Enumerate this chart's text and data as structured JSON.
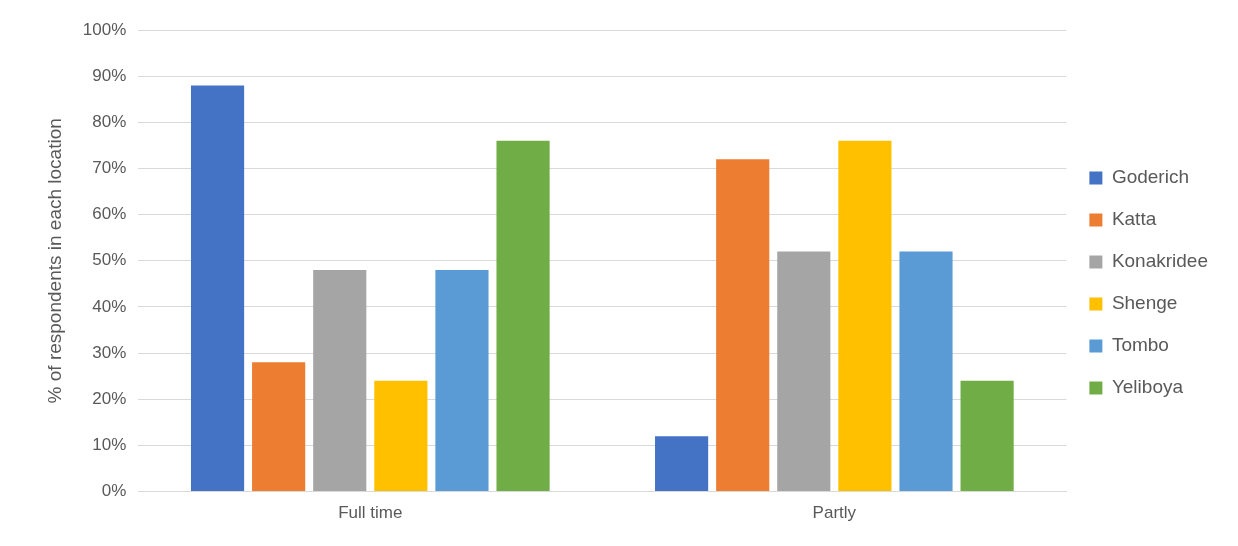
{
  "chart_data": {
    "type": "bar",
    "ylabel": "% of respondents in each location",
    "categories": [
      "Full time",
      "Partly"
    ],
    "series": [
      {
        "name": "Goderich",
        "color": "#4472c4",
        "values": [
          88,
          12
        ]
      },
      {
        "name": "Katta",
        "color": "#ed7d31",
        "values": [
          28,
          72
        ]
      },
      {
        "name": "Konakridee",
        "color": "#a5a5a5",
        "values": [
          48,
          52
        ]
      },
      {
        "name": "Shenge",
        "color": "#ffc000",
        "values": [
          24,
          76
        ]
      },
      {
        "name": "Tombo",
        "color": "#5b9bd5",
        "values": [
          48,
          52
        ]
      },
      {
        "name": "Yeliboya",
        "color": "#70ad47",
        "values": [
          76,
          24
        ]
      }
    ],
    "ylim": [
      0,
      100
    ],
    "yticks": [
      {
        "value": 0,
        "label": "0%"
      },
      {
        "value": 10,
        "label": "10%"
      },
      {
        "value": 20,
        "label": "20%"
      },
      {
        "value": 30,
        "label": "30%"
      },
      {
        "value": 40,
        "label": "40%"
      },
      {
        "value": 50,
        "label": "50%"
      },
      {
        "value": 60,
        "label": "60%"
      },
      {
        "value": 70,
        "label": "70%"
      },
      {
        "value": 80,
        "label": "80%"
      },
      {
        "value": 90,
        "label": "90%"
      },
      {
        "value": 100,
        "label": "100%"
      }
    ],
    "grid": "y",
    "legend": "right"
  }
}
